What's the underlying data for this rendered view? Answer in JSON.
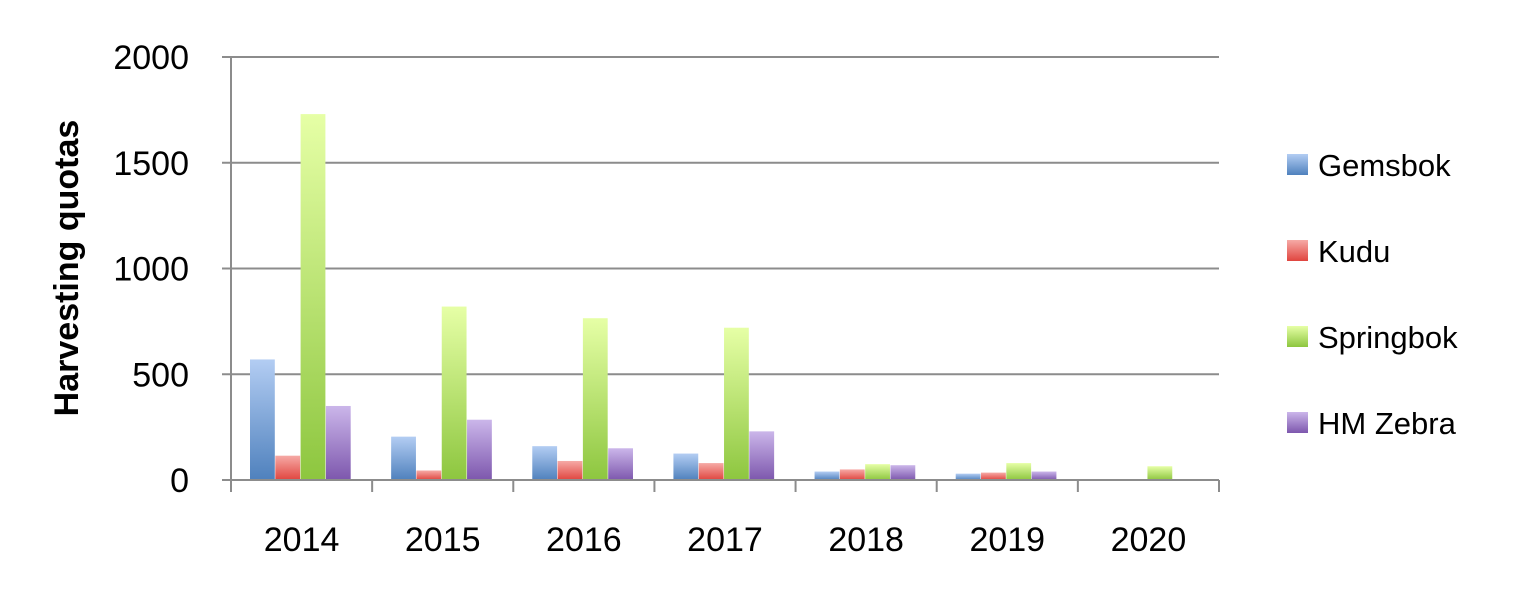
{
  "chart_data": {
    "type": "bar",
    "title": "",
    "xlabel": "",
    "ylabel": "Harvesting quotas",
    "ylim": [
      0,
      2000
    ],
    "yticks": [
      0,
      500,
      1000,
      1500,
      2000
    ],
    "categories": [
      "2014",
      "2015",
      "2016",
      "2017",
      "2018",
      "2019",
      "2020"
    ],
    "series": [
      {
        "name": "Gemsbok",
        "values": [
          570,
          205,
          160,
          125,
          40,
          30,
          0
        ],
        "color": "#4f81bd",
        "light": "#b3cdf3"
      },
      {
        "name": "Kudu",
        "values": [
          115,
          45,
          90,
          80,
          50,
          35,
          0
        ],
        "color": "#e0453f",
        "light": "#f6aaa6"
      },
      {
        "name": "Springbok",
        "values": [
          1730,
          820,
          765,
          720,
          75,
          80,
          65
        ],
        "color": "#8dc63f",
        "light": "#e6ffa6"
      },
      {
        "name": "HM Zebra",
        "values": [
          350,
          285,
          150,
          230,
          70,
          40,
          0
        ],
        "color": "#7d57ad",
        "light": "#cbb6ea"
      }
    ],
    "grid": true,
    "legend": "right"
  }
}
